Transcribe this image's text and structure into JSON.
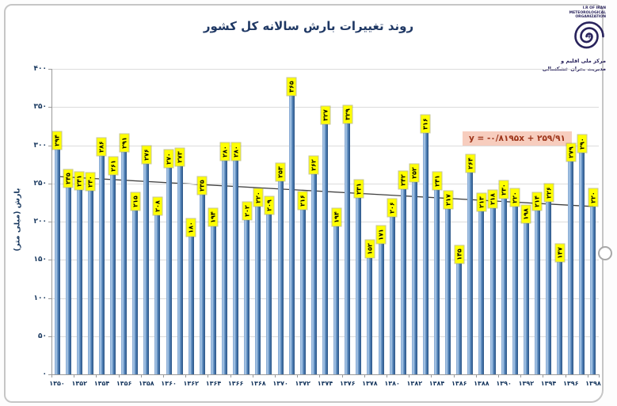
{
  "header": {
    "title": "روند تغییرات بارش سالانه کل کشور",
    "logo": {
      "org_text_lines": [
        "I.R OF IRAN",
        "METEOROLOGICAL",
        "ORGANIZATION"
      ],
      "caption_line1": "مرکز ملی اقلیم و",
      "caption_line2": "مدیریت بحران خشکسالی"
    }
  },
  "chart_data": {
    "type": "bar",
    "title": "روند تغییرات بارش سالانه کل کشور",
    "ylabel": "بارش (میلی متر)",
    "ylim": [
      0,
      400
    ],
    "grid": true,
    "legend": false,
    "years_start": 1350,
    "years_end": 1398,
    "ytick_values": [
      0,
      50,
      100,
      150,
      200,
      250,
      300,
      350,
      400
    ],
    "ytick_labels_fa": [
      "۰",
      "۵۰",
      "۱۰۰",
      "۱۵۰",
      "۲۰۰",
      "۲۵۰",
      "۳۰۰",
      "۳۵۰",
      "۴۰۰"
    ],
    "xtick_labels_fa": [
      "۱۳۵۰",
      "۱۳۵۲",
      "۱۳۵۴",
      "۱۳۵۶",
      "۱۳۵۸",
      "۱۳۶۰",
      "۱۳۶۲",
      "۱۳۶۴",
      "۱۳۶۶",
      "۱۳۶۸",
      "۱۳۷۰",
      "۱۳۷۲",
      "۱۳۷۴",
      "۱۳۷۶",
      "۱۳۷۸",
      "۱۳۸۰",
      "۱۳۸۲",
      "۱۳۸۴",
      "۱۳۸۶",
      "۱۳۸۸",
      "۱۳۹۰",
      "۱۳۹۲",
      "۱۳۹۴",
      "۱۳۹۶",
      "۱۳۹۸"
    ],
    "values": [
      294,
      245,
      241,
      240,
      286,
      261,
      291,
      215,
      276,
      208,
      270,
      273,
      180,
      235,
      194,
      280,
      280,
      202,
      220,
      209,
      253,
      365,
      216,
      262,
      327,
      194,
      329,
      231,
      152,
      171,
      206,
      242,
      252,
      316,
      241,
      217,
      145,
      264,
      213,
      218,
      230,
      220,
      198,
      214,
      226,
      147,
      279,
      290,
      220
    ],
    "bar_labels_fa": [
      "۲۹۴",
      "۲۴۵",
      "۲۴۱",
      "۲۴۰",
      "۲۸۶",
      "۲۶۱",
      "۲۹۱",
      "۲۱۵",
      "۲۷۶",
      "۲۰۸",
      "۲۷۰",
      "۲۷۳",
      "۱۸۰",
      "۲۳۵",
      "۱۹۴",
      "۲۸۰",
      "۲۸۰",
      "۲۰۲",
      "۲۲۰",
      "۲۰۹",
      "۲۵۳",
      "۳۶۵",
      "۲۱۶",
      "۲۶۲",
      "۳۲۷",
      "۱۹۴",
      "۳۲۹",
      "۲۳۱",
      "۱۵۲",
      "۱۷۱",
      "۲۰۶",
      "۲۴۲",
      "۲۵۲",
      "۳۱۶",
      "۲۴۱",
      "۲۱۷",
      "۱۴۵",
      "۲۶۴",
      "۲۱۳",
      "۲۱۸",
      "۲۳۰",
      "۲۲۰",
      "۱۹۸",
      "۲۱۴",
      "۲۲۶",
      "۱۴۷",
      "۲۷۹",
      "۲۹۰",
      "۲۲۰"
    ],
    "trendline": {
      "slope": -0.8195,
      "intercept": 259.91,
      "equation_text": "y = -۰/۸۱۹۵x + ۲۵۹/۹۱"
    },
    "colors": {
      "bar": "#4F81BD",
      "bar_label_bg": "#FFFF00",
      "trend": "#404040",
      "equation_bg": "#F7CDBE",
      "equation_text": "#9C3318",
      "axis_text": "#17375E",
      "title_text": "#1F3864",
      "grid": "#DCDCDC"
    }
  }
}
